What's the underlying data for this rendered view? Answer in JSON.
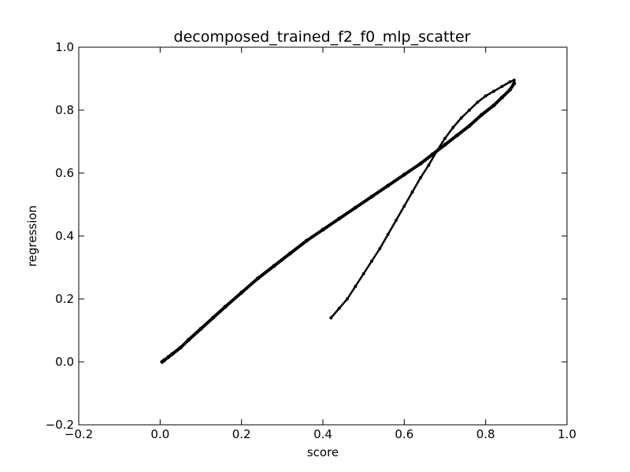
{
  "chart_data": {
    "type": "scatter",
    "title": "decomposed_trained_f2_f0_mlp_scatter",
    "xlabel": "score",
    "ylabel": "regression",
    "xlim": [
      -0.2,
      1.0
    ],
    "ylim": [
      -0.2,
      1.0
    ],
    "xticks": [
      "−0.2",
      "0.0",
      "0.2",
      "0.4",
      "0.6",
      "0.8",
      "1.0"
    ],
    "yticks": [
      "−0.2",
      "0.0",
      "0.2",
      "0.4",
      "0.6",
      "0.8",
      "1.0"
    ],
    "grid": false,
    "marker_color": "#000000",
    "series": [
      {
        "x": [
          0.005,
          0.01,
          0.02,
          0.03,
          0.05,
          0.07,
          0.1,
          0.13,
          0.16,
          0.2,
          0.24,
          0.28,
          0.32,
          0.36,
          0.4,
          0.44,
          0.48,
          0.52,
          0.56,
          0.6,
          0.64,
          0.67,
          0.7,
          0.73,
          0.76,
          0.79,
          0.82,
          0.84,
          0.86,
          0.87
        ],
        "y": [
          0.0,
          0.005,
          0.015,
          0.025,
          0.045,
          0.07,
          0.105,
          0.14,
          0.175,
          0.22,
          0.265,
          0.305,
          0.345,
          0.385,
          0.42,
          0.455,
          0.49,
          0.525,
          0.56,
          0.595,
          0.63,
          0.66,
          0.69,
          0.72,
          0.75,
          0.785,
          0.815,
          0.84,
          0.865,
          0.885
        ]
      },
      {
        "x": [
          0.42,
          0.44,
          0.46,
          0.48,
          0.5,
          0.52,
          0.54,
          0.56,
          0.58,
          0.6,
          0.62,
          0.64,
          0.66,
          0.68,
          0.7,
          0.72,
          0.74,
          0.76,
          0.78,
          0.8,
          0.82,
          0.84,
          0.86,
          0.87
        ],
        "y": [
          0.14,
          0.17,
          0.2,
          0.24,
          0.28,
          0.32,
          0.36,
          0.405,
          0.45,
          0.495,
          0.54,
          0.585,
          0.625,
          0.67,
          0.71,
          0.745,
          0.775,
          0.8,
          0.825,
          0.845,
          0.86,
          0.875,
          0.89,
          0.895
        ]
      }
    ]
  }
}
